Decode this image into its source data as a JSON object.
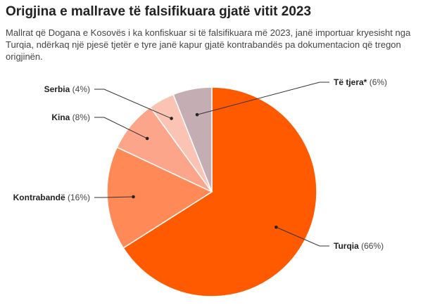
{
  "title": "Origjina e mallrave të falsifikuara gjatë vitit 2023",
  "subtitle": "Mallrat që Dogana e Kosovës i ka konfiskuar si të falsifikuara më 2023, janë importuar kryesisht nga Turqia, ndërkaq një pjesë tjetër e tyre janë kapur gjatë kontrabandës pa dokumentacion që tregon origjinën.",
  "chart_data": {
    "type": "pie",
    "title": "Origjina e mallrave të falsifikuara gjatë vitit 2023",
    "slices": [
      {
        "label": "Turqia",
        "pct_label": "(66%)",
        "value": 66,
        "color": "#ff5a00"
      },
      {
        "label": "Kontrabandë",
        "pct_label": "(16%)",
        "value": 16,
        "color": "#ff8a57"
      },
      {
        "label": "Kina",
        "pct_label": "(8%)",
        "value": 8,
        "color": "#fca58a"
      },
      {
        "label": "Serbia",
        "pct_label": "(4%)",
        "value": 4,
        "color": "#fbc3b4"
      },
      {
        "label": "Të tjera*",
        "pct_label": "(6%)",
        "value": 6,
        "color": "#c4aeb3"
      }
    ],
    "legend": "none"
  }
}
